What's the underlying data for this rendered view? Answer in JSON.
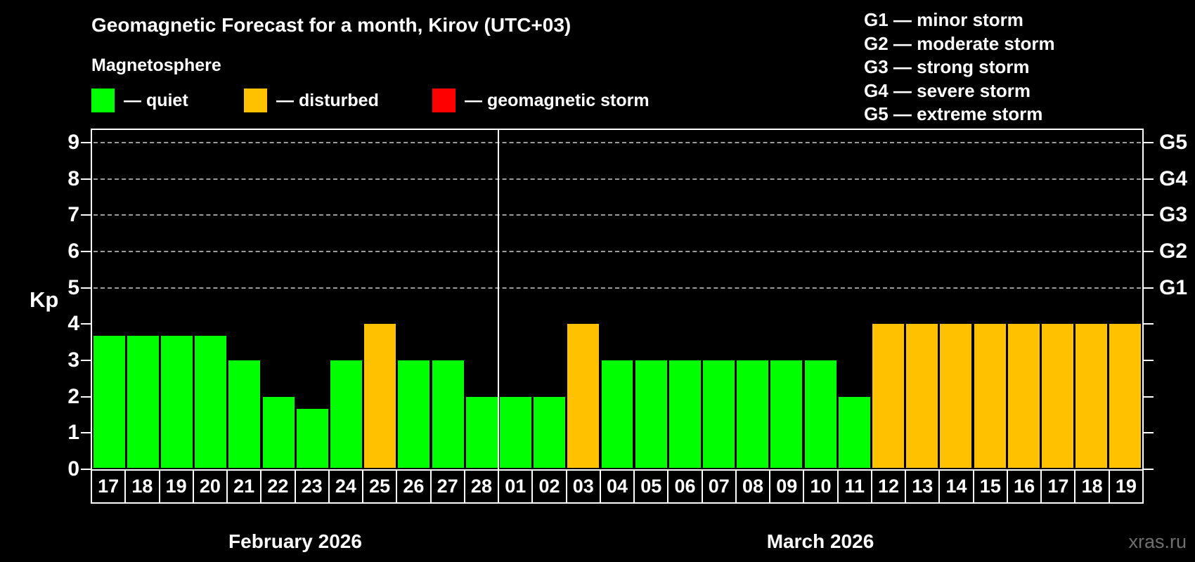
{
  "title": "Geomagnetic Forecast for a month, Kirov (UTC+03)",
  "subtitle": "Magnetosphere",
  "legend": {
    "items": [
      {
        "label": "— quiet",
        "status": "quiet",
        "color": "#00ff00"
      },
      {
        "label": "— disturbed",
        "status": "disturbed",
        "color": "#ffc100"
      },
      {
        "label": "— geomagnetic storm",
        "status": "storm",
        "color": "#ff0000"
      }
    ]
  },
  "g_scale_legend": [
    "G1 — minor storm",
    "G2 — moderate storm",
    "G3 — strong storm",
    "G4 — severe storm",
    "G5 — extreme storm"
  ],
  "watermark": "xras.ru",
  "colors": {
    "background": "#000000",
    "text": "#ffffff",
    "grid": "#9b9b9b",
    "axis": "#ffffff",
    "watermark": "#6f6f6f"
  },
  "chart_data": {
    "type": "bar",
    "title": "Geomagnetic Forecast for a month, Kirov (UTC+03)",
    "ylabel": "Kp",
    "ylim": [
      0,
      9.4
    ],
    "yticks": [
      0,
      1,
      2,
      3,
      4,
      5,
      6,
      7,
      8,
      9
    ],
    "grid_kp_levels": [
      5,
      6,
      7,
      8,
      9
    ],
    "right_axis": [
      {
        "label": "G1",
        "kp": 5
      },
      {
        "label": "G2",
        "kp": 6
      },
      {
        "label": "G3",
        "kp": 7
      },
      {
        "label": "G4",
        "kp": 8
      },
      {
        "label": "G5",
        "kp": 9
      }
    ],
    "bar_colors": {
      "quiet": "#00ff00",
      "disturbed": "#ffc100",
      "storm": "#ff0000"
    },
    "groups": [
      {
        "month": "February 2026",
        "days": [
          {
            "date": "17",
            "kp": 3.67,
            "status": "quiet"
          },
          {
            "date": "18",
            "kp": 3.67,
            "status": "quiet"
          },
          {
            "date": "19",
            "kp": 3.67,
            "status": "quiet"
          },
          {
            "date": "20",
            "kp": 3.67,
            "status": "quiet"
          },
          {
            "date": "21",
            "kp": 3,
            "status": "quiet"
          },
          {
            "date": "22",
            "kp": 2,
            "status": "quiet"
          },
          {
            "date": "23",
            "kp": 1.67,
            "status": "quiet"
          },
          {
            "date": "24",
            "kp": 3,
            "status": "quiet"
          },
          {
            "date": "25",
            "kp": 4,
            "status": "disturbed"
          },
          {
            "date": "26",
            "kp": 3,
            "status": "quiet"
          },
          {
            "date": "27",
            "kp": 3,
            "status": "quiet"
          },
          {
            "date": "28",
            "kp": 2,
            "status": "quiet"
          }
        ]
      },
      {
        "month": "March 2026",
        "days": [
          {
            "date": "01",
            "kp": 2,
            "status": "quiet"
          },
          {
            "date": "02",
            "kp": 2,
            "status": "quiet"
          },
          {
            "date": "03",
            "kp": 4,
            "status": "disturbed"
          },
          {
            "date": "04",
            "kp": 3,
            "status": "quiet"
          },
          {
            "date": "05",
            "kp": 3,
            "status": "quiet"
          },
          {
            "date": "06",
            "kp": 3,
            "status": "quiet"
          },
          {
            "date": "07",
            "kp": 3,
            "status": "quiet"
          },
          {
            "date": "08",
            "kp": 3,
            "status": "quiet"
          },
          {
            "date": "09",
            "kp": 3,
            "status": "quiet"
          },
          {
            "date": "10",
            "kp": 3,
            "status": "quiet"
          },
          {
            "date": "11",
            "kp": 2,
            "status": "quiet"
          },
          {
            "date": "12",
            "kp": 4,
            "status": "disturbed"
          },
          {
            "date": "13",
            "kp": 4,
            "status": "disturbed"
          },
          {
            "date": "14",
            "kp": 4,
            "status": "disturbed"
          },
          {
            "date": "15",
            "kp": 4,
            "status": "disturbed"
          },
          {
            "date": "16",
            "kp": 4,
            "status": "disturbed"
          },
          {
            "date": "17",
            "kp": 4,
            "status": "disturbed"
          },
          {
            "date": "18",
            "kp": 4,
            "status": "disturbed"
          },
          {
            "date": "19",
            "kp": 4,
            "status": "disturbed"
          }
        ]
      }
    ]
  }
}
